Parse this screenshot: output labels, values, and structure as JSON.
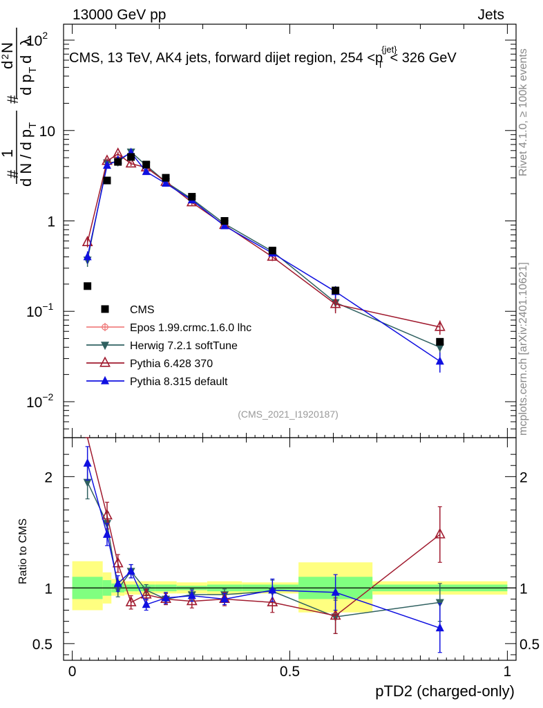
{
  "header": {
    "left": "13000 GeV pp",
    "right": "Jets"
  },
  "chart_data": {
    "type": "scatter",
    "title": "CMS, 13 TeV, AK4 jets, forward dijet region, 254 <p",
    "title_superscript": "{jet}",
    "title_subscript": "T",
    "title_suffix": "< 326 GeV",
    "analysis_id": "(CMS_2021_I1920187)",
    "side_label_top": "Rivet 4.1.0, ≥ 100k events",
    "side_label_bottom": "mcplots.cern.ch [arXiv:2401.10621]",
    "xlabel": "pTD2 (charged-only)",
    "ylabel_main": "# 1/(dN / dp_T) # d²N/(dp_T dλ)",
    "ylabel_ratio": "Ratio to CMS",
    "xlim": [
      -0.02,
      1.02
    ],
    "ylim_main": [
      0.004,
      150
    ],
    "ylim_ratio": [
      0.35,
      2.35
    ],
    "x_ticks": [
      {
        "v": 0,
        "label": "0"
      },
      {
        "v": 0.5,
        "label": "0.5"
      },
      {
        "v": 1,
        "label": "1"
      }
    ],
    "y_ticks_main": [
      {
        "v": 0.01,
        "base": "10",
        "exp": "−2"
      },
      {
        "v": 0.1,
        "base": "10",
        "exp": "−1"
      },
      {
        "v": 1,
        "base": "1",
        "exp": ""
      },
      {
        "v": 10,
        "base": "10",
        "exp": ""
      },
      {
        "v": 100,
        "base": "10",
        "exp": "2"
      }
    ],
    "y_ticks_ratio": [
      {
        "v": 0.5,
        "label": "0.5"
      },
      {
        "v": 1,
        "label": "1"
      },
      {
        "v": 2,
        "label": "2"
      }
    ],
    "bin_edges": [
      0,
      0.07,
      0.09,
      0.12,
      0.15,
      0.19,
      0.24,
      0.31,
      0.39,
      0.52,
      0.69,
      1.0
    ],
    "uncertainty_band": {
      "yellow": [
        [
          0.8,
          1.24
        ],
        [
          0.86,
          1.14
        ],
        [
          0.93,
          1.08
        ],
        [
          0.94,
          1.06
        ],
        [
          0.94,
          1.06
        ],
        [
          0.95,
          1.06
        ],
        [
          0.95,
          1.05
        ],
        [
          0.94,
          1.06
        ],
        [
          0.95,
          1.05
        ],
        [
          0.78,
          1.23
        ],
        [
          0.94,
          1.06
        ]
      ],
      "green": [
        [
          0.9,
          1.1
        ],
        [
          0.93,
          1.07
        ],
        [
          0.96,
          1.04
        ],
        [
          0.97,
          1.03
        ],
        [
          0.97,
          1.03
        ],
        [
          0.97,
          1.03
        ],
        [
          0.98,
          1.02
        ],
        [
          0.97,
          1.03
        ],
        [
          0.97,
          1.03
        ],
        [
          0.9,
          1.1
        ],
        [
          0.97,
          1.03
        ]
      ]
    },
    "series": [
      {
        "name": "CMS",
        "legend": "CMS",
        "color": "#000000",
        "marker": "square",
        "x": [
          0.035,
          0.08,
          0.105,
          0.135,
          0.17,
          0.215,
          0.275,
          0.35,
          0.46,
          0.605,
          0.845
        ],
        "y": [
          0.19,
          2.8,
          4.5,
          5.1,
          4.2,
          3.0,
          1.85,
          1.0,
          0.47,
          0.17,
          0.046
        ],
        "err": [
          0.01,
          0.1,
          0.15,
          0.15,
          0.12,
          0.08,
          0.05,
          0.03,
          0.02,
          0.015,
          0.004
        ]
      },
      {
        "name": "Epos",
        "legend": "Epos 1.99.crmc.1.6.0 lhc",
        "color": "#f08080",
        "marker": "cross",
        "x": [],
        "y": [],
        "err": [],
        "ratio": [],
        "ratio_err": []
      },
      {
        "name": "Herwig",
        "legend": "Herwig 7.2.1 softTune",
        "color": "#2f6060",
        "marker": "triangle-down",
        "x": [
          0.035,
          0.08,
          0.105,
          0.135,
          0.17,
          0.215,
          0.275,
          0.35,
          0.46,
          0.605,
          0.845
        ],
        "y": [
          0.37,
          4.4,
          4.5,
          5.8,
          4.1,
          2.7,
          1.75,
          0.93,
          0.46,
          0.125,
          0.04
        ],
        "err": [
          0.06,
          0.3,
          0.3,
          0.3,
          0.2,
          0.15,
          0.1,
          0.05,
          0.04,
          0.025,
          0.009
        ],
        "ratio": [
          1.95,
          1.58,
          0.99,
          1.15,
          0.98,
          0.9,
          0.94,
          0.94,
          0.97,
          0.74,
          0.87
        ],
        "ratio_err": [
          0.15,
          0.1,
          0.07,
          0.06,
          0.05,
          0.05,
          0.05,
          0.05,
          0.1,
          0.15,
          0.17
        ]
      },
      {
        "name": "Pythia6",
        "legend": "Pythia 6.428 370",
        "color": "#a01a2e",
        "marker": "triangle-open",
        "x": [
          0.035,
          0.08,
          0.105,
          0.135,
          0.17,
          0.215,
          0.275,
          0.35,
          0.46,
          0.605,
          0.845
        ],
        "y": [
          0.58,
          4.6,
          5.5,
          4.3,
          3.9,
          2.7,
          1.6,
          0.9,
          0.4,
          0.12,
          0.067
        ],
        "err": [
          0.07,
          0.3,
          0.3,
          0.25,
          0.2,
          0.15,
          0.1,
          0.05,
          0.04,
          0.025,
          0.012
        ],
        "ratio": [
          3.0,
          1.65,
          1.22,
          0.87,
          0.94,
          0.9,
          0.88,
          0.9,
          0.87,
          0.75,
          1.48
        ],
        "ratio_err": [
          0.3,
          0.12,
          0.08,
          0.06,
          0.05,
          0.05,
          0.06,
          0.06,
          0.09,
          0.16,
          0.25
        ]
      },
      {
        "name": "Pythia8",
        "legend": "Pythia 8.315 default",
        "color": "#1010e0",
        "marker": "triangle-up",
        "x": [
          0.035,
          0.08,
          0.105,
          0.135,
          0.17,
          0.215,
          0.275,
          0.35,
          0.46,
          0.605,
          0.845
        ],
        "y": [
          0.4,
          4.1,
          4.7,
          5.7,
          3.5,
          2.6,
          1.7,
          0.88,
          0.44,
          0.165,
          0.028
        ],
        "err": [
          0.06,
          0.3,
          0.3,
          0.3,
          0.2,
          0.15,
          0.1,
          0.05,
          0.04,
          0.025,
          0.007
        ],
        "ratio": [
          2.12,
          1.48,
          1.04,
          1.15,
          0.85,
          0.91,
          0.93,
          0.9,
          0.98,
          0.96,
          0.64
        ],
        "ratio_err": [
          0.15,
          0.1,
          0.07,
          0.06,
          0.05,
          0.05,
          0.05,
          0.05,
          0.1,
          0.16,
          0.22
        ]
      }
    ]
  }
}
